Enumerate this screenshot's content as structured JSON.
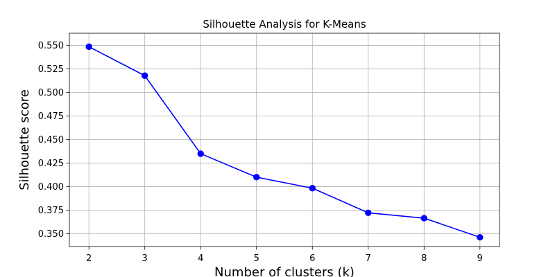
{
  "chart_data": {
    "type": "line",
    "title": "Silhouette Analysis for K-Means",
    "xlabel": "Number of clusters (k)",
    "ylabel": "Silhouette score",
    "x": [
      2,
      3,
      4,
      5,
      6,
      7,
      8,
      9
    ],
    "series": [
      {
        "values": [
          0.5485,
          0.5178,
          0.435,
          0.4101,
          0.3984,
          0.3723,
          0.3666,
          0.3463
        ],
        "color": "#0000ff",
        "marker": "circle"
      }
    ],
    "xlim": [
      1.65,
      9.35
    ],
    "ylim": [
      0.3365,
      0.5628
    ],
    "xticks": [
      2,
      3,
      4,
      5,
      6,
      7,
      8,
      9
    ],
    "yticks": [
      "0.350",
      "0.375",
      "0.400",
      "0.425",
      "0.450",
      "0.475",
      "0.500",
      "0.525",
      "0.550"
    ],
    "grid": true,
    "legend": "none"
  }
}
